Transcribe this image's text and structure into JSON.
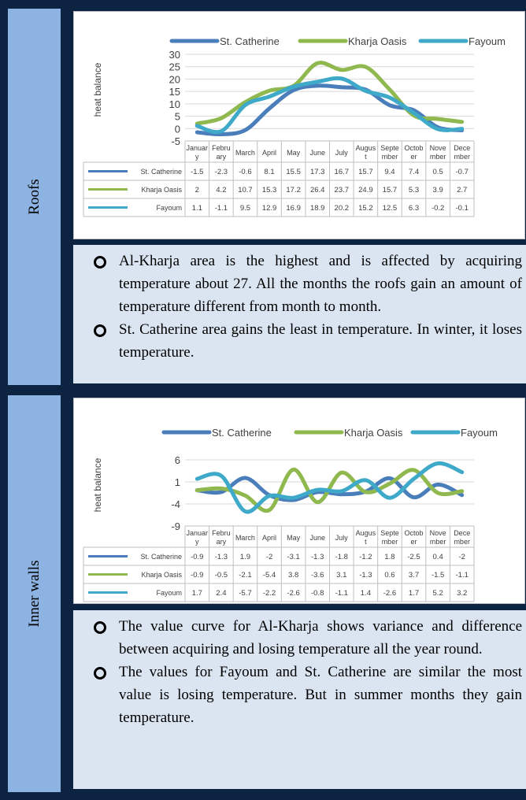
{
  "panels": [
    {
      "label": "Roofs",
      "chart_data": {
        "type": "line",
        "ylabel": "heat balance",
        "ylim": [
          -5,
          30
        ],
        "yticks": [
          -5,
          0,
          5,
          10,
          15,
          20,
          25,
          30
        ],
        "categories": [
          [
            "Januar",
            "y"
          ],
          [
            "Febru",
            "ary"
          ],
          [
            "March",
            ""
          ],
          [
            "April",
            ""
          ],
          [
            "May",
            ""
          ],
          [
            "June",
            ""
          ],
          [
            "July",
            ""
          ],
          [
            "Augus",
            "t"
          ],
          [
            "Septe",
            "mber"
          ],
          [
            "Octob",
            "er"
          ],
          [
            "Nove",
            "mber"
          ],
          [
            "Dece",
            "mber"
          ]
        ],
        "series": [
          {
            "name": "St. Catherine",
            "color": "#4a7ebb",
            "values": [
              -1.5,
              -2.3,
              -0.6,
              8.1,
              15.5,
              17.3,
              16.7,
              15.7,
              9.4,
              7.4,
              0.5,
              -0.7
            ]
          },
          {
            "name": "Kharja Oasis",
            "color": "#8fb84e",
            "values": [
              2,
              4.2,
              10.7,
              15.3,
              17.2,
              26.4,
              23.7,
              24.9,
              15.7,
              5.3,
              3.9,
              2.7
            ]
          },
          {
            "name": "Fayoum",
            "color": "#3fa9c9",
            "values": [
              1.1,
              -1.1,
              9.5,
              12.9,
              16.9,
              18.9,
              20.2,
              15.2,
              12.5,
              6.3,
              -0.2,
              -0.1
            ]
          }
        ]
      },
      "notes": [
        "Al-Kharja area is the highest and is affected by acquiring temperature about 27. All the months the roofs gain an amount of temperature different from month to month.",
        "St. Catherine area gains the least in temperature. In winter, it loses temperature."
      ]
    },
    {
      "label": "Inner walls",
      "chart_data": {
        "type": "line",
        "ylabel": "heat balance",
        "ylim": [
          -9,
          6
        ],
        "yticks": [
          -9,
          -4,
          1,
          6
        ],
        "categories": [
          [
            "Januar",
            "y"
          ],
          [
            "Febru",
            "ary"
          ],
          [
            "March",
            ""
          ],
          [
            "April",
            ""
          ],
          [
            "May",
            ""
          ],
          [
            "June",
            ""
          ],
          [
            "July",
            ""
          ],
          [
            "Augus",
            "t"
          ],
          [
            "Septe",
            "mber"
          ],
          [
            "Octob",
            "er"
          ],
          [
            "Nove",
            "mber"
          ],
          [
            "Dece",
            "mber"
          ]
        ],
        "series": [
          {
            "name": "St. Catherine",
            "color": "#4a7ebb",
            "values": [
              -0.9,
              -1.3,
              1.9,
              -2,
              -3.1,
              -1.3,
              -1.8,
              -1.2,
              1.8,
              -2.5,
              0.4,
              -2
            ]
          },
          {
            "name": "Kharja Oasis",
            "color": "#8fb84e",
            "values": [
              -0.9,
              -0.5,
              -2.1,
              -5.4,
              3.8,
              -3.6,
              3.1,
              -1.3,
              0.6,
              3.7,
              -1.5,
              -1.1
            ]
          },
          {
            "name": "Fayoum",
            "color": "#3fa9c9",
            "values": [
              1.7,
              2.4,
              -5.7,
              -2.2,
              -2.6,
              -0.8,
              -1.1,
              1.4,
              -2.6,
              1.7,
              5.2,
              3.2
            ]
          }
        ]
      },
      "notes": [
        "The value curve for Al-Kharja shows variance and difference between acquiring and losing temperature all the year round.",
        "The values for Fayoum and St. Catherine are similar the most value is losing temperature. But in summer months they gain temperature."
      ]
    }
  ]
}
